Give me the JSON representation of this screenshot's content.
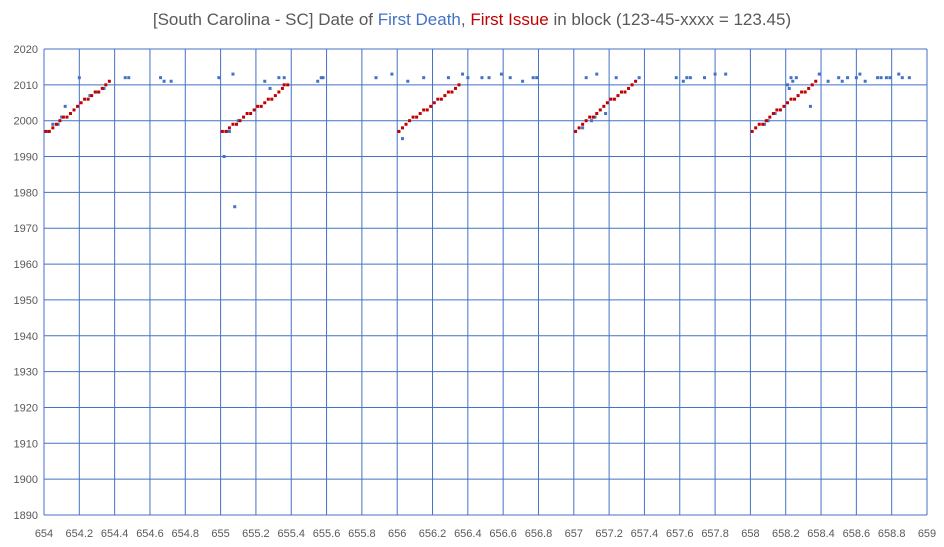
{
  "title": {
    "prefix": "[South Carolina - SC] Date of ",
    "part_blue": "First Death",
    "separator": ", ",
    "part_red": "First Issue",
    "suffix": " in block (123-45-xxxx = 123.45)"
  },
  "colors": {
    "first_death": "#4472c4",
    "first_issue": "#c00000",
    "gridline": "#4472c4",
    "text": "#595959"
  },
  "chart_data": {
    "type": "scatter",
    "title": "[South Carolina - SC] Date of First Death, First Issue in block (123-45-xxxx = 123.45)",
    "xlim": [
      654,
      659
    ],
    "ylim": [
      1890,
      2020
    ],
    "x_ticks": [
      "654",
      "654.2",
      "654.4",
      "654.6",
      "654.8",
      "655",
      "655.2",
      "655.4",
      "655.6",
      "655.8",
      "656",
      "656.2",
      "656.4",
      "656.6",
      "656.8",
      "657",
      "657.2",
      "657.4",
      "657.6",
      "657.8",
      "658",
      "658.2",
      "658.4",
      "658.6",
      "658.8",
      "659"
    ],
    "y_ticks": [
      "1890",
      "1900",
      "1910",
      "1920",
      "1930",
      "1940",
      "1950",
      "1960",
      "1970",
      "1980",
      "1990",
      "2000",
      "2010",
      "2020"
    ],
    "grid": true,
    "legend": "none",
    "series": [
      {
        "name": "First Death",
        "color": "#4472c4",
        "points": [
          [
            654.02,
            1997
          ],
          [
            654.05,
            1999
          ],
          [
            654.08,
            1999
          ],
          [
            654.1,
            2001
          ],
          [
            654.12,
            2004
          ],
          [
            654.2,
            2012
          ],
          [
            654.26,
            2007
          ],
          [
            654.3,
            2008
          ],
          [
            654.34,
            2009
          ],
          [
            654.46,
            2012
          ],
          [
            654.48,
            2012
          ],
          [
            654.66,
            2012
          ],
          [
            654.68,
            2011
          ],
          [
            654.72,
            2011
          ],
          [
            654.99,
            2012
          ],
          [
            655.02,
            1990
          ],
          [
            655.04,
            1997
          ],
          [
            655.05,
            1997
          ],
          [
            655.07,
            2013
          ],
          [
            655.08,
            1976
          ],
          [
            655.1,
            2000
          ],
          [
            655.25,
            2011
          ],
          [
            655.28,
            2009
          ],
          [
            655.33,
            2012
          ],
          [
            655.36,
            2012
          ],
          [
            655.55,
            2011
          ],
          [
            655.57,
            2012
          ],
          [
            655.58,
            2012
          ],
          [
            655.88,
            2012
          ],
          [
            655.97,
            2013
          ],
          [
            656.03,
            1995
          ],
          [
            656.06,
            2011
          ],
          [
            656.15,
            2012
          ],
          [
            656.29,
            2012
          ],
          [
            656.37,
            2013
          ],
          [
            656.4,
            2012
          ],
          [
            656.48,
            2012
          ],
          [
            656.52,
            2012
          ],
          [
            656.59,
            2013
          ],
          [
            656.64,
            2012
          ],
          [
            656.71,
            2011
          ],
          [
            656.77,
            2012
          ],
          [
            656.79,
            2012
          ],
          [
            657.05,
            1998
          ],
          [
            657.07,
            2012
          ],
          [
            657.1,
            2000
          ],
          [
            657.12,
            2001
          ],
          [
            657.13,
            2013
          ],
          [
            657.18,
            2002
          ],
          [
            657.24,
            2012
          ],
          [
            657.37,
            2012
          ],
          [
            657.58,
            2012
          ],
          [
            657.62,
            2011
          ],
          [
            657.64,
            2012
          ],
          [
            657.66,
            2012
          ],
          [
            657.74,
            2012
          ],
          [
            657.8,
            2013
          ],
          [
            657.86,
            2013
          ],
          [
            658.08,
            1999
          ],
          [
            658.1,
            2000
          ],
          [
            658.14,
            2002
          ],
          [
            658.21,
            2010
          ],
          [
            658.22,
            2009
          ],
          [
            658.23,
            2012
          ],
          [
            658.24,
            2011
          ],
          [
            658.26,
            2012
          ],
          [
            658.34,
            2004
          ],
          [
            658.39,
            2013
          ],
          [
            658.44,
            2011
          ],
          [
            658.5,
            2012
          ],
          [
            658.52,
            2011
          ],
          [
            658.55,
            2012
          ],
          [
            658.6,
            2012
          ],
          [
            658.62,
            2013
          ],
          [
            658.65,
            2011
          ],
          [
            658.72,
            2012
          ],
          [
            658.74,
            2012
          ],
          [
            658.77,
            2012
          ],
          [
            658.79,
            2012
          ],
          [
            658.84,
            2013
          ],
          [
            658.86,
            2012
          ],
          [
            658.9,
            2012
          ]
        ]
      },
      {
        "name": "First Issue",
        "color": "#c00000",
        "points": [
          [
            654.01,
            1997
          ],
          [
            654.03,
            1997
          ],
          [
            654.05,
            1998
          ],
          [
            654.07,
            1999
          ],
          [
            654.09,
            2000
          ],
          [
            654.11,
            2001
          ],
          [
            654.13,
            2001
          ],
          [
            654.15,
            2002
          ],
          [
            654.17,
            2003
          ],
          [
            654.19,
            2004
          ],
          [
            654.21,
            2005
          ],
          [
            654.23,
            2006
          ],
          [
            654.25,
            2006
          ],
          [
            654.27,
            2007
          ],
          [
            654.29,
            2008
          ],
          [
            654.31,
            2008
          ],
          [
            654.33,
            2009
          ],
          [
            654.35,
            2010
          ],
          [
            654.37,
            2011
          ],
          [
            655.01,
            1997
          ],
          [
            655.03,
            1997
          ],
          [
            655.05,
            1998
          ],
          [
            655.07,
            1999
          ],
          [
            655.09,
            1999
          ],
          [
            655.11,
            2000
          ],
          [
            655.13,
            2001
          ],
          [
            655.15,
            2002
          ],
          [
            655.17,
            2002
          ],
          [
            655.19,
            2003
          ],
          [
            655.21,
            2004
          ],
          [
            655.23,
            2004
          ],
          [
            655.25,
            2005
          ],
          [
            655.27,
            2006
          ],
          [
            655.29,
            2006
          ],
          [
            655.31,
            2007
          ],
          [
            655.33,
            2008
          ],
          [
            655.35,
            2009
          ],
          [
            655.36,
            2010
          ],
          [
            655.38,
            2010
          ],
          [
            656.01,
            1997
          ],
          [
            656.03,
            1998
          ],
          [
            656.05,
            1999
          ],
          [
            656.07,
            2000
          ],
          [
            656.09,
            2001
          ],
          [
            656.11,
            2001
          ],
          [
            656.13,
            2002
          ],
          [
            656.15,
            2003
          ],
          [
            656.17,
            2003
          ],
          [
            656.19,
            2004
          ],
          [
            656.21,
            2005
          ],
          [
            656.23,
            2006
          ],
          [
            656.25,
            2006
          ],
          [
            656.27,
            2007
          ],
          [
            656.29,
            2008
          ],
          [
            656.31,
            2008
          ],
          [
            656.33,
            2009
          ],
          [
            656.35,
            2010
          ],
          [
            657.01,
            1997
          ],
          [
            657.03,
            1998
          ],
          [
            657.05,
            1999
          ],
          [
            657.07,
            2000
          ],
          [
            657.09,
            2001
          ],
          [
            657.11,
            2001
          ],
          [
            657.13,
            2002
          ],
          [
            657.15,
            2003
          ],
          [
            657.17,
            2004
          ],
          [
            657.19,
            2005
          ],
          [
            657.21,
            2006
          ],
          [
            657.23,
            2006
          ],
          [
            657.25,
            2007
          ],
          [
            657.27,
            2008
          ],
          [
            657.29,
            2008
          ],
          [
            657.31,
            2009
          ],
          [
            657.33,
            2010
          ],
          [
            657.35,
            2011
          ],
          [
            658.01,
            1997
          ],
          [
            658.03,
            1998
          ],
          [
            658.05,
            1999
          ],
          [
            658.07,
            1999
          ],
          [
            658.09,
            2000
          ],
          [
            658.11,
            2001
          ],
          [
            658.13,
            2002
          ],
          [
            658.15,
            2003
          ],
          [
            658.17,
            2003
          ],
          [
            658.19,
            2004
          ],
          [
            658.21,
            2005
          ],
          [
            658.23,
            2006
          ],
          [
            658.25,
            2006
          ],
          [
            658.27,
            2007
          ],
          [
            658.29,
            2008
          ],
          [
            658.31,
            2008
          ],
          [
            658.33,
            2009
          ],
          [
            658.35,
            2010
          ],
          [
            658.37,
            2011
          ]
        ]
      }
    ]
  }
}
